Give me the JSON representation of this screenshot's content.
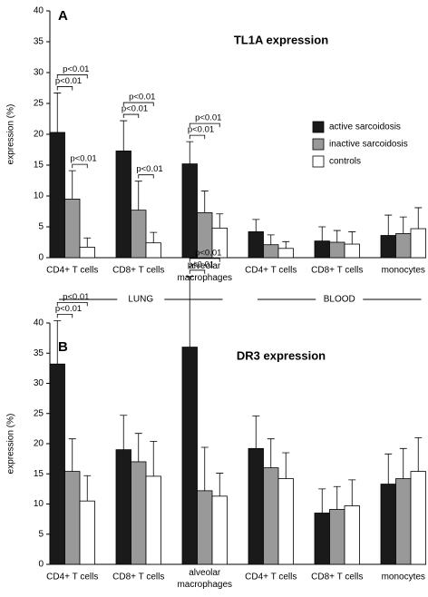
{
  "chart_data": [
    {
      "type": "bar",
      "panel": "A",
      "title": "TL1A expression",
      "ylabel": "expression (%)",
      "categories": [
        "CD4+ T cells",
        "CD8+ T cells",
        "alveolar\nmacrophages",
        "CD4+ T cells",
        "CD8+ T cells",
        "monocytes"
      ],
      "series": [
        {
          "name": "active sarcoidosis",
          "color": "#1a1a1a",
          "values": [
            20.3,
            17.3,
            15.2,
            4.2,
            2.7,
            3.6
          ],
          "errors": [
            6.4,
            4.9,
            3.6,
            2.0,
            2.3,
            3.3
          ]
        },
        {
          "name": "inactive sarcoidosis",
          "color": "#999999",
          "values": [
            9.5,
            7.7,
            7.3,
            2.1,
            2.5,
            3.9
          ],
          "errors": [
            4.6,
            4.7,
            3.5,
            1.6,
            1.9,
            2.7
          ]
        },
        {
          "name": "controls",
          "color": "#ffffff",
          "values": [
            1.7,
            2.4,
            4.8,
            1.5,
            2.2,
            4.7
          ],
          "errors": [
            1.5,
            1.7,
            2.3,
            1.1,
            2.0,
            3.4
          ]
        }
      ],
      "ylim": [
        0,
        40
      ],
      "yticks": [
        0,
        5,
        10,
        15,
        20,
        25,
        30,
        35,
        40
      ],
      "grid": false,
      "legend": "right",
      "significance": [
        {
          "category": 0,
          "from": 0,
          "to": 1,
          "label": "p<0.01"
        },
        {
          "category": 0,
          "from": 0,
          "to": 2,
          "label": "p<0.01"
        },
        {
          "category": 0,
          "from": 1,
          "to": 2,
          "label": "p<0.01"
        },
        {
          "category": 1,
          "from": 0,
          "to": 1,
          "label": "p<0.01"
        },
        {
          "category": 1,
          "from": 0,
          "to": 2,
          "label": "p<0.01"
        },
        {
          "category": 1,
          "from": 1,
          "to": 2,
          "label": "p<0.01"
        },
        {
          "category": 2,
          "from": 0,
          "to": 1,
          "label": "p<0.01"
        },
        {
          "category": 2,
          "from": 0,
          "to": 2,
          "label": "p<0.01"
        }
      ],
      "groups": [
        {
          "label": "LUNG",
          "from": 0,
          "to": 2
        },
        {
          "label": "BLOOD",
          "from": 3,
          "to": 5
        }
      ]
    },
    {
      "type": "bar",
      "panel": "B",
      "title": "DR3 expression",
      "ylabel": "expression (%)",
      "categories": [
        "CD4+ T cells",
        "CD8+ T cells",
        "alveolar\nmacrophages",
        "CD4+ T cells",
        "CD8+ T cells",
        "monocytes"
      ],
      "series": [
        {
          "name": "active sarcoidosis",
          "color": "#1a1a1a",
          "values": [
            33.2,
            19.0,
            36.0,
            19.2,
            8.5,
            13.3
          ],
          "errors": [
            7.2,
            5.7,
            11.7,
            5.4,
            4.0,
            5.0
          ]
        },
        {
          "name": "inactive sarcoidosis",
          "color": "#999999",
          "values": [
            15.4,
            17.0,
            12.2,
            16.0,
            9.1,
            14.2
          ],
          "errors": [
            5.4,
            4.7,
            7.2,
            4.8,
            3.8,
            5.0
          ]
        },
        {
          "name": "controls",
          "color": "#ffffff",
          "values": [
            10.5,
            14.6,
            11.3,
            14.2,
            9.7,
            15.4
          ],
          "errors": [
            4.2,
            5.8,
            3.8,
            4.3,
            4.3,
            5.6
          ]
        }
      ],
      "ylim": [
        0,
        40
      ],
      "yticks": [
        0,
        5,
        10,
        15,
        20,
        25,
        30,
        35,
        40
      ],
      "grid": false,
      "significance": [
        {
          "category": 0,
          "from": 0,
          "to": 1,
          "label": "p<0.01"
        },
        {
          "category": 0,
          "from": 0,
          "to": 2,
          "label": "p<0.01"
        },
        {
          "category": 2,
          "from": 0,
          "to": 1,
          "label": "p<0.01"
        },
        {
          "category": 2,
          "from": 0,
          "to": 2,
          "label": "p<0.01"
        }
      ]
    }
  ]
}
